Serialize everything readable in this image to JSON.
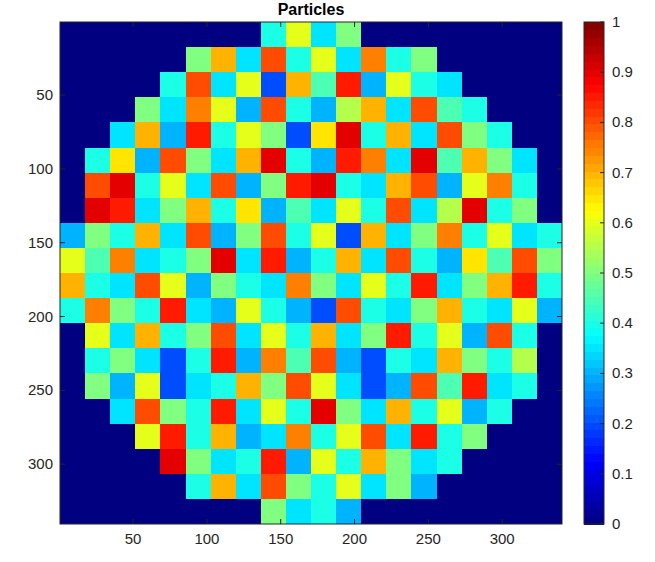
{
  "chart_data": {
    "type": "heatmap",
    "title": "Particles",
    "xlim": [
      0.5,
      340.5
    ],
    "ylim": [
      0.5,
      340.5
    ],
    "xticks": [
      50,
      100,
      150,
      200,
      250,
      300
    ],
    "yticks": [
      50,
      100,
      150,
      200,
      250,
      300
    ],
    "color_range": [
      0,
      1
    ],
    "color_ticks": [
      0,
      0.1,
      0.2,
      0.3,
      0.4,
      0.5,
      0.6,
      0.7,
      0.8,
      0.9,
      1
    ],
    "cells": [
      [
        0,
        0,
        0,
        0,
        0,
        0,
        0,
        0,
        0.4,
        0.6,
        0.35,
        0.5,
        0,
        0,
        0,
        0,
        0,
        0,
        0,
        0
      ],
      [
        0,
        0,
        0,
        0,
        0,
        0.5,
        0.7,
        0.35,
        0.8,
        0.4,
        0.6,
        0.35,
        0.75,
        0.4,
        0.5,
        0,
        0,
        0,
        0,
        0
      ],
      [
        0,
        0,
        0,
        0,
        0.4,
        0.8,
        0.35,
        0.6,
        0.2,
        0.7,
        0.45,
        0.85,
        0.3,
        0.6,
        0.4,
        0.35,
        0,
        0,
        0,
        0
      ],
      [
        0,
        0,
        0,
        0.5,
        0.35,
        0.75,
        0.6,
        0.3,
        0.8,
        0.4,
        0.3,
        0.55,
        0.7,
        0.35,
        0.8,
        0.45,
        0.4,
        0,
        0,
        0
      ],
      [
        0,
        0,
        0.35,
        0.7,
        0.3,
        0.85,
        0.4,
        0.6,
        0.5,
        0.2,
        0.65,
        0.9,
        0.4,
        0.7,
        0.35,
        0.8,
        0.5,
        0.4,
        0,
        0
      ],
      [
        0,
        0.4,
        0.65,
        0.3,
        0.8,
        0.5,
        0.35,
        0.7,
        0.9,
        0.4,
        0.3,
        0.85,
        0.75,
        0.35,
        0.9,
        0.45,
        0.7,
        0.5,
        0.35,
        0
      ],
      [
        0,
        0.8,
        0.9,
        0.4,
        0.6,
        0.35,
        0.8,
        0.3,
        0.5,
        0.85,
        0.9,
        0.4,
        0.35,
        0.7,
        0.8,
        0.3,
        0.6,
        0.75,
        0.4,
        0
      ],
      [
        0,
        0.9,
        0.85,
        0.35,
        0.5,
        0.7,
        0.4,
        0.65,
        0.3,
        0.45,
        0.35,
        0.6,
        0.4,
        0.8,
        0.35,
        0.55,
        0.9,
        0.4,
        0.5,
        0
      ],
      [
        0.3,
        0.5,
        0.4,
        0.7,
        0.35,
        0.8,
        0.3,
        0.5,
        0.8,
        0.4,
        0.6,
        0.2,
        0.7,
        0.35,
        0.5,
        0.75,
        0.4,
        0.6,
        0.35,
        0.4
      ],
      [
        0.6,
        0.45,
        0.75,
        0.35,
        0.4,
        0.5,
        0.9,
        0.35,
        0.85,
        0.3,
        0.4,
        0.7,
        0.35,
        0.8,
        0.4,
        0.3,
        0.65,
        0.45,
        0.8,
        0.5
      ],
      [
        0.7,
        0.4,
        0.35,
        0.8,
        0.6,
        0.3,
        0.5,
        0.4,
        0.35,
        0.75,
        0.5,
        0.35,
        0.6,
        0.4,
        0.85,
        0.35,
        0.5,
        0.7,
        0.85,
        0.4
      ],
      [
        0.4,
        0.75,
        0.5,
        0.4,
        0.85,
        0.35,
        0.3,
        0.6,
        0.4,
        0.3,
        0.2,
        0.8,
        0.4,
        0.35,
        0.5,
        0.7,
        0.4,
        0.35,
        0.6,
        0.3
      ],
      [
        0,
        0.6,
        0.35,
        0.7,
        0.4,
        0.5,
        0.8,
        0.35,
        0.6,
        0.4,
        0.7,
        0.35,
        0.5,
        0.85,
        0.4,
        0.6,
        0.3,
        0.8,
        0.4,
        0
      ],
      [
        0,
        0.4,
        0.5,
        0.35,
        0.2,
        0.4,
        0.85,
        0.3,
        0.75,
        0.45,
        0.8,
        0.3,
        0.2,
        0.4,
        0.35,
        0.7,
        0.5,
        0.4,
        0.55,
        0
      ],
      [
        0,
        0.5,
        0.3,
        0.6,
        0.2,
        0.35,
        0.4,
        0.7,
        0.5,
        0.8,
        0.6,
        0.35,
        0.2,
        0.3,
        0.8,
        0.45,
        0.85,
        0.35,
        0.4,
        0
      ],
      [
        0,
        0,
        0.35,
        0.8,
        0.5,
        0.4,
        0.85,
        0.35,
        0.6,
        0.4,
        0.9,
        0.5,
        0.35,
        0.7,
        0.4,
        0.6,
        0.3,
        0.4,
        0,
        0
      ],
      [
        0,
        0,
        0,
        0.6,
        0.85,
        0.4,
        0.7,
        0.3,
        0.35,
        0.75,
        0.4,
        0.6,
        0.8,
        0.35,
        0.85,
        0.4,
        0.5,
        0,
        0,
        0
      ],
      [
        0,
        0,
        0,
        0,
        0.9,
        0.5,
        0.35,
        0.4,
        0.85,
        0.3,
        0.6,
        0.4,
        0.7,
        0.5,
        0.35,
        0.4,
        0,
        0,
        0,
        0
      ],
      [
        0,
        0,
        0,
        0,
        0,
        0.4,
        0.7,
        0.35,
        0.8,
        0.5,
        0.4,
        0.6,
        0.35,
        0.5,
        0.3,
        0,
        0,
        0,
        0,
        0
      ],
      [
        0,
        0,
        0,
        0,
        0,
        0,
        0,
        0,
        0.5,
        0.35,
        0.4,
        0.3,
        0,
        0,
        0,
        0,
        0,
        0,
        0,
        0
      ]
    ]
  }
}
